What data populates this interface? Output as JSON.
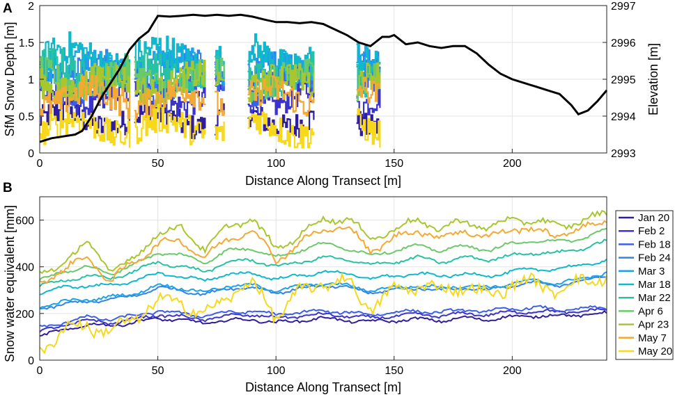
{
  "panels": [
    {
      "letter": "A",
      "xlabel": "Distance Along Transect [m]",
      "ylabel": "SfM Snow Depth [m]",
      "ylabel_right": "Elevation [m]"
    },
    {
      "letter": "B",
      "xlabel": "Distance Along Transect [m]",
      "ylabel": "Snow water equivalent [mm]"
    }
  ],
  "legend": {
    "entries": [
      "Jan 20",
      "Feb 2",
      "Feb 18",
      "Feb 24",
      "Mar 3",
      "Mar 18",
      "Mar 22",
      "Apr 6",
      "Apr 23",
      "May 7",
      "May 20"
    ]
  },
  "chart_data": [
    {
      "type": "line",
      "panel": "A",
      "xlabel": "Distance Along Transect [m]",
      "ylabel": "SfM Snow Depth [m]",
      "ylabel_right": "Elevation [m]",
      "xlim": [
        0,
        240
      ],
      "ylim": [
        0,
        2
      ],
      "ylim_right": [
        2993,
        2997
      ],
      "xticks": [
        0,
        50,
        100,
        150,
        200
      ],
      "yticks": [
        0,
        0.5,
        1,
        1.5,
        2
      ],
      "yticks_right": [
        2993,
        2994,
        2995,
        2996,
        2997
      ],
      "grid": true,
      "segments": [
        [
          0,
          38
        ],
        [
          40,
          70
        ],
        [
          74,
          78
        ],
        [
          88,
          116
        ],
        [
          134,
          144
        ]
      ],
      "elevation": {
        "x": [
          0,
          5,
          10,
          15,
          18,
          22,
          26,
          30,
          34,
          38,
          42,
          46,
          50,
          55,
          60,
          65,
          70,
          75,
          80,
          85,
          90,
          95,
          100,
          105,
          110,
          115,
          120,
          125,
          130,
          135,
          140,
          142,
          145,
          148,
          150,
          155,
          160,
          165,
          170,
          175,
          180,
          185,
          190,
          195,
          200,
          205,
          210,
          215,
          220,
          225,
          228,
          232,
          236,
          240
        ],
        "y": [
          2993.3,
          2993.4,
          2993.45,
          2993.5,
          2993.6,
          2994.0,
          2994.5,
          2994.9,
          2995.3,
          2995.8,
          2996.1,
          2996.3,
          2996.72,
          2996.7,
          2996.72,
          2996.75,
          2996.72,
          2996.75,
          2996.72,
          2996.75,
          2996.7,
          2996.62,
          2996.55,
          2996.55,
          2996.52,
          2996.55,
          2996.5,
          2996.35,
          2996.2,
          2996.0,
          2995.9,
          2996.0,
          2996.15,
          2996.15,
          2996.2,
          2995.95,
          2996.0,
          2995.9,
          2995.85,
          2995.9,
          2995.9,
          2995.7,
          2995.4,
          2995.15,
          2995.0,
          2994.9,
          2994.8,
          2994.7,
          2994.6,
          2994.3,
          2994.05,
          2994.15,
          2994.4,
          2994.7
        ]
      },
      "series": [
        {
          "name": "Jan 20",
          "color": "#2e1e9e",
          "base": 0.45,
          "amp": 0.18
        },
        {
          "name": "Feb 2",
          "color": "#3b34cc",
          "base": 0.75,
          "amp": 0.18
        },
        {
          "name": "Feb 18",
          "color": "#3d5fe6",
          "base": 0.95,
          "amp": 0.2
        },
        {
          "name": "Feb 24",
          "color": "#2f82f0",
          "base": 1.1,
          "amp": 0.2
        },
        {
          "name": "Mar 3",
          "color": "#1ca3e6",
          "base": 1.2,
          "amp": 0.2
        },
        {
          "name": "Mar 18",
          "color": "#10b8cc",
          "base": 1.3,
          "amp": 0.22
        },
        {
          "name": "Mar 22",
          "color": "#27c2a4",
          "base": 1.1,
          "amp": 0.22
        },
        {
          "name": "Apr 6",
          "color": "#6cc96a",
          "base": 1.0,
          "amp": 0.2
        },
        {
          "name": "Apr 23",
          "color": "#a8c62e",
          "base": 0.95,
          "amp": 0.2
        },
        {
          "name": "May 7",
          "color": "#f3a934",
          "base": 0.75,
          "amp": 0.2
        },
        {
          "name": "May 20",
          "color": "#f7d81a",
          "base": 0.35,
          "amp": 0.2
        }
      ]
    },
    {
      "type": "line",
      "panel": "B",
      "xlabel": "Distance Along Transect [m]",
      "ylabel": "Snow water equivalent [mm]",
      "xlim": [
        0,
        240
      ],
      "ylim": [
        0,
        700
      ],
      "xticks": [
        0,
        50,
        100,
        150,
        200
      ],
      "yticks": [
        0,
        200,
        400,
        600
      ],
      "grid": true,
      "x": [
        0,
        10,
        20,
        30,
        40,
        50,
        60,
        70,
        80,
        90,
        100,
        110,
        120,
        130,
        140,
        150,
        160,
        170,
        180,
        190,
        200,
        210,
        220,
        230,
        240
      ],
      "series": [
        {
          "name": "Jan 20",
          "color": "#2e1e9e",
          "values": [
            100,
            130,
            150,
            150,
            160,
            180,
            170,
            160,
            170,
            175,
            160,
            170,
            180,
            170,
            165,
            170,
            175,
            170,
            180,
            175,
            185,
            190,
            190,
            195,
            200
          ]
        },
        {
          "name": "Feb 2",
          "color": "#3b34cc",
          "values": [
            120,
            150,
            170,
            160,
            175,
            195,
            185,
            175,
            190,
            195,
            180,
            190,
            195,
            190,
            180,
            190,
            195,
            190,
            200,
            195,
            205,
            210,
            205,
            210,
            215
          ]
        },
        {
          "name": "Feb 18",
          "color": "#3d5fe6",
          "values": [
            140,
            160,
            185,
            175,
            190,
            210,
            200,
            190,
            205,
            210,
            195,
            205,
            210,
            205,
            195,
            205,
            210,
            205,
            215,
            210,
            220,
            225,
            215,
            220,
            225
          ]
        },
        {
          "name": "Feb 24",
          "color": "#2f82f0",
          "values": [
            220,
            240,
            250,
            260,
            275,
            310,
            300,
            280,
            310,
            310,
            290,
            305,
            320,
            310,
            290,
            300,
            310,
            300,
            310,
            300,
            320,
            330,
            320,
            340,
            365
          ]
        },
        {
          "name": "Mar 3",
          "color": "#1ca3e6",
          "values": [
            230,
            250,
            260,
            270,
            285,
            320,
            310,
            290,
            320,
            320,
            300,
            315,
            330,
            320,
            300,
            310,
            320,
            310,
            320,
            310,
            330,
            340,
            330,
            350,
            375
          ]
        },
        {
          "name": "Mar 18",
          "color": "#10b8cc",
          "values": [
            290,
            310,
            320,
            320,
            340,
            370,
            360,
            340,
            370,
            370,
            350,
            360,
            380,
            370,
            350,
            360,
            370,
            360,
            370,
            360,
            380,
            390,
            390,
            410,
            425
          ]
        },
        {
          "name": "Mar 22",
          "color": "#27c2a4",
          "values": [
            320,
            340,
            360,
            350,
            380,
            420,
            400,
            380,
            420,
            430,
            400,
            420,
            440,
            430,
            410,
            420,
            440,
            420,
            440,
            430,
            450,
            460,
            460,
            480,
            510
          ]
        },
        {
          "name": "Apr 6",
          "color": "#6cc96a",
          "values": [
            340,
            380,
            400,
            370,
            410,
            460,
            450,
            420,
            470,
            480,
            440,
            470,
            500,
            480,
            450,
            470,
            490,
            470,
            490,
            470,
            500,
            510,
            510,
            520,
            560
          ]
        },
        {
          "name": "Apr 23",
          "color": "#a8c62e",
          "values": [
            360,
            420,
            500,
            390,
            430,
            550,
            560,
            480,
            570,
            610,
            470,
            540,
            600,
            610,
            520,
            560,
            600,
            560,
            600,
            560,
            610,
            590,
            580,
            590,
            640
          ]
        },
        {
          "name": "May 7",
          "color": "#f3a934",
          "values": [
            330,
            390,
            440,
            340,
            420,
            500,
            510,
            440,
            520,
            560,
            430,
            500,
            560,
            570,
            470,
            520,
            560,
            520,
            560,
            520,
            570,
            550,
            540,
            560,
            610
          ]
        },
        {
          "name": "May 20",
          "color": "#f7d81a",
          "values": [
            50,
            120,
            160,
            110,
            190,
            240,
            260,
            180,
            290,
            320,
            200,
            280,
            340,
            330,
            230,
            290,
            330,
            290,
            330,
            260,
            340,
            320,
            310,
            330,
            370
          ]
        }
      ]
    }
  ]
}
